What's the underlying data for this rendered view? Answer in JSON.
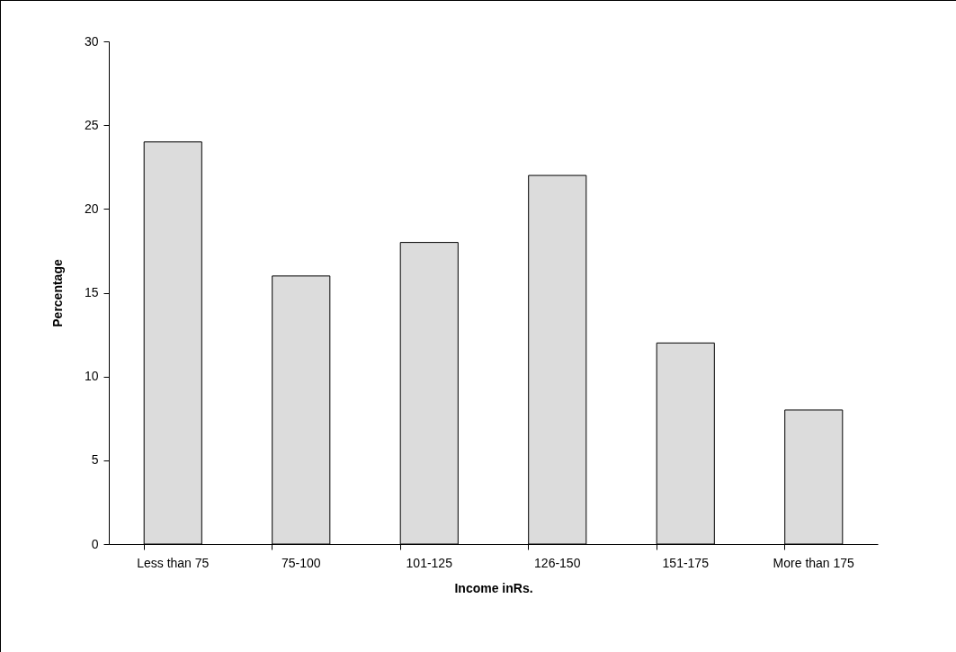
{
  "chart_data": {
    "type": "bar",
    "xlabel": "Income inRs.",
    "ylabel": "Percentage",
    "categories": [
      "Less than 75",
      "75-100",
      "101-125",
      "126-150",
      "151-175",
      "More than 175"
    ],
    "values": [
      24,
      16,
      18,
      22,
      12,
      8
    ],
    "color": "#dcdcdc",
    "ylim": [
      0,
      30
    ],
    "yticks": [
      0,
      5,
      10,
      15,
      20,
      25,
      30
    ],
    "grid": false
  }
}
